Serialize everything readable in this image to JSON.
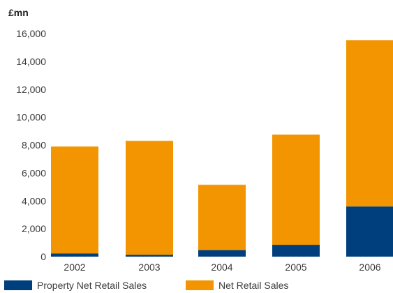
{
  "chart_data": {
    "type": "bar",
    "stacked": true,
    "unit_label": "£mn",
    "categories": [
      "2002",
      "2003",
      "2004",
      "2005",
      "2006"
    ],
    "series": [
      {
        "name": "Property Net Retail Sales",
        "color": "#003f7d",
        "values": [
          230,
          130,
          470,
          850,
          3600
        ]
      },
      {
        "name": "Net Retail Sales",
        "color": "#f29500",
        "values": [
          7670,
          8170,
          4680,
          7900,
          11930
        ]
      }
    ],
    "y_ticks": [
      "0",
      "2,000",
      "4,000",
      "6,000",
      "8,000",
      "10,000",
      "12,000",
      "14,000",
      "16,000"
    ],
    "ylim": [
      0,
      16000
    ],
    "grid": false,
    "legend_position": "bottom-left"
  }
}
